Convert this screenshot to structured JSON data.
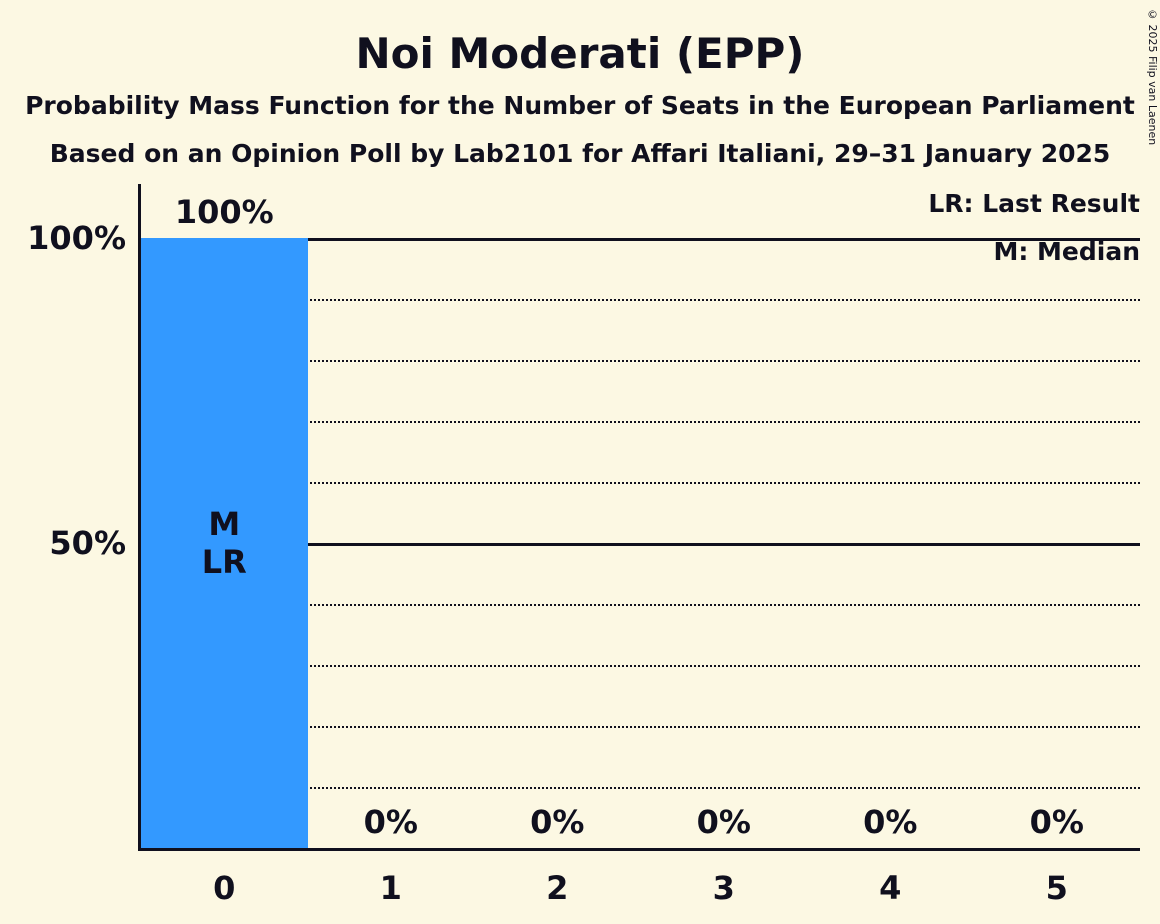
{
  "page": {
    "background_color": "#FCF8E3",
    "text_color": "#10101E"
  },
  "chart_data": {
    "type": "bar",
    "title": "Noi Moderati (EPP)",
    "subtitle1": "Probability Mass Function for the Number of Seats in the European Parliament",
    "subtitle2": "Based on an Opinion Poll by Lab2101 for Affari Italiani, 29–31 January 2025",
    "copyright": "© 2025 Filip van Laenen",
    "xlabel": "Number of Seats",
    "ylabel": "Probability",
    "categories": [
      "0",
      "1",
      "2",
      "3",
      "4",
      "5"
    ],
    "values": [
      100,
      0,
      0,
      0,
      0,
      0
    ],
    "value_labels": [
      "100%",
      "0%",
      "0%",
      "0%",
      "0%",
      "0%"
    ],
    "ylim": [
      0,
      100
    ],
    "y_ticks": [
      {
        "value": 100,
        "label": "100%"
      },
      {
        "value": 50,
        "label": "50%"
      }
    ],
    "gridlines": [
      {
        "value": 100,
        "style": "solid"
      },
      {
        "value": 90,
        "style": "dotted"
      },
      {
        "value": 80,
        "style": "dotted"
      },
      {
        "value": 70,
        "style": "dotted"
      },
      {
        "value": 60,
        "style": "dotted"
      },
      {
        "value": 50,
        "style": "solid"
      },
      {
        "value": 40,
        "style": "dotted"
      },
      {
        "value": 30,
        "style": "dotted"
      },
      {
        "value": 20,
        "style": "dotted"
      },
      {
        "value": 10,
        "style": "dotted"
      }
    ],
    "legend": {
      "lr": "LR: Last Result",
      "m": "M: Median"
    },
    "annotations": [
      {
        "category": "0",
        "lines": [
          "M",
          "LR"
        ]
      }
    ],
    "bar_color": "#3399FF",
    "grid": "horizontal-only",
    "legend_position": "top-right"
  }
}
